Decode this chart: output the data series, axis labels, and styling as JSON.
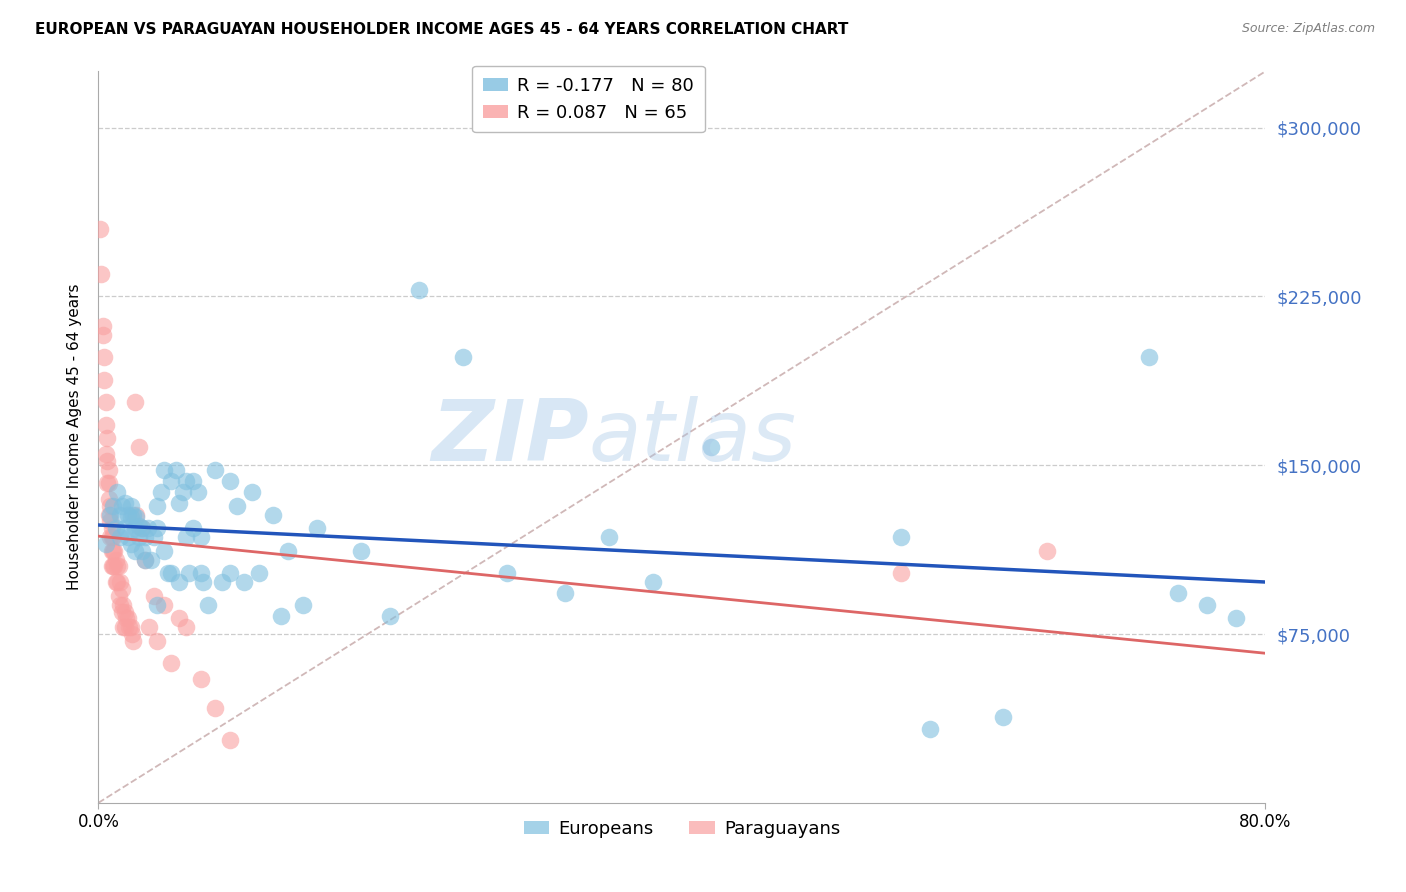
{
  "title": "EUROPEAN VS PARAGUAYAN HOUSEHOLDER INCOME AGES 45 - 64 YEARS CORRELATION CHART",
  "source": "Source: ZipAtlas.com",
  "ylabel": "Householder Income Ages 45 - 64 years",
  "ytick_labels": [
    "$75,000",
    "$150,000",
    "$225,000",
    "$300,000"
  ],
  "ytick_values": [
    75000,
    150000,
    225000,
    300000
  ],
  "ymin": 0,
  "ymax": 325000,
  "xmin": 0.0,
  "xmax": 0.8,
  "european_color": "#7fbfdf",
  "paraguayan_color": "#f9a0a0",
  "trendline_euro_color": "#2255bb",
  "trendline_para_color": "#dd6666",
  "diag_color": "#d0b8b8",
  "european_R": -0.177,
  "european_N": 80,
  "paraguayan_R": 0.087,
  "paraguayan_N": 65,
  "watermark_zip": "ZIP",
  "watermark_atlas": "atlas",
  "legend_european_label": "Europeans",
  "legend_paraguayan_label": "Paraguayans",
  "european_x": [
    0.005,
    0.008,
    0.01,
    0.012,
    0.013,
    0.015,
    0.015,
    0.016,
    0.018,
    0.018,
    0.02,
    0.02,
    0.022,
    0.022,
    0.022,
    0.024,
    0.025,
    0.025,
    0.026,
    0.028,
    0.028,
    0.03,
    0.03,
    0.032,
    0.032,
    0.034,
    0.036,
    0.038,
    0.04,
    0.04,
    0.04,
    0.043,
    0.045,
    0.045,
    0.048,
    0.05,
    0.05,
    0.053,
    0.055,
    0.055,
    0.058,
    0.06,
    0.06,
    0.062,
    0.065,
    0.065,
    0.068,
    0.07,
    0.07,
    0.072,
    0.075,
    0.08,
    0.085,
    0.09,
    0.09,
    0.095,
    0.1,
    0.105,
    0.11,
    0.12,
    0.125,
    0.13,
    0.14,
    0.15,
    0.18,
    0.2,
    0.22,
    0.25,
    0.28,
    0.32,
    0.35,
    0.38,
    0.42,
    0.55,
    0.57,
    0.62,
    0.72,
    0.74,
    0.76,
    0.78
  ],
  "european_y": [
    115000,
    128000,
    132000,
    122000,
    138000,
    128000,
    118000,
    132000,
    122000,
    133000,
    128000,
    118000,
    127000,
    132000,
    115000,
    128000,
    122000,
    112000,
    127000,
    118000,
    123000,
    122000,
    112000,
    118000,
    108000,
    122000,
    108000,
    118000,
    132000,
    122000,
    88000,
    138000,
    112000,
    148000,
    102000,
    143000,
    102000,
    148000,
    133000,
    98000,
    138000,
    118000,
    143000,
    102000,
    143000,
    122000,
    138000,
    102000,
    118000,
    98000,
    88000,
    148000,
    98000,
    143000,
    102000,
    132000,
    98000,
    138000,
    102000,
    128000,
    83000,
    112000,
    88000,
    122000,
    112000,
    83000,
    228000,
    198000,
    102000,
    93000,
    118000,
    98000,
    158000,
    118000,
    33000,
    38000,
    198000,
    93000,
    88000,
    82000
  ],
  "paraguayan_x": [
    0.001,
    0.002,
    0.003,
    0.003,
    0.004,
    0.004,
    0.005,
    0.005,
    0.005,
    0.006,
    0.006,
    0.006,
    0.007,
    0.007,
    0.007,
    0.007,
    0.008,
    0.008,
    0.008,
    0.009,
    0.009,
    0.009,
    0.009,
    0.01,
    0.01,
    0.01,
    0.011,
    0.011,
    0.012,
    0.012,
    0.013,
    0.013,
    0.014,
    0.014,
    0.015,
    0.015,
    0.016,
    0.016,
    0.017,
    0.017,
    0.018,
    0.018,
    0.019,
    0.02,
    0.021,
    0.022,
    0.023,
    0.024,
    0.025,
    0.026,
    0.028,
    0.03,
    0.032,
    0.035,
    0.038,
    0.04,
    0.045,
    0.05,
    0.055,
    0.06,
    0.07,
    0.08,
    0.09,
    0.55,
    0.65
  ],
  "paraguayan_y": [
    255000,
    235000,
    212000,
    208000,
    198000,
    188000,
    178000,
    168000,
    155000,
    162000,
    152000,
    142000,
    148000,
    142000,
    135000,
    128000,
    132000,
    125000,
    118000,
    122000,
    118000,
    112000,
    105000,
    118000,
    112000,
    105000,
    112000,
    105000,
    108000,
    98000,
    105000,
    98000,
    105000,
    92000,
    98000,
    88000,
    95000,
    85000,
    88000,
    78000,
    85000,
    78000,
    82000,
    82000,
    78000,
    78000,
    75000,
    72000,
    178000,
    128000,
    158000,
    122000,
    108000,
    78000,
    92000,
    72000,
    88000,
    62000,
    82000,
    78000,
    55000,
    42000,
    28000,
    102000,
    112000
  ]
}
